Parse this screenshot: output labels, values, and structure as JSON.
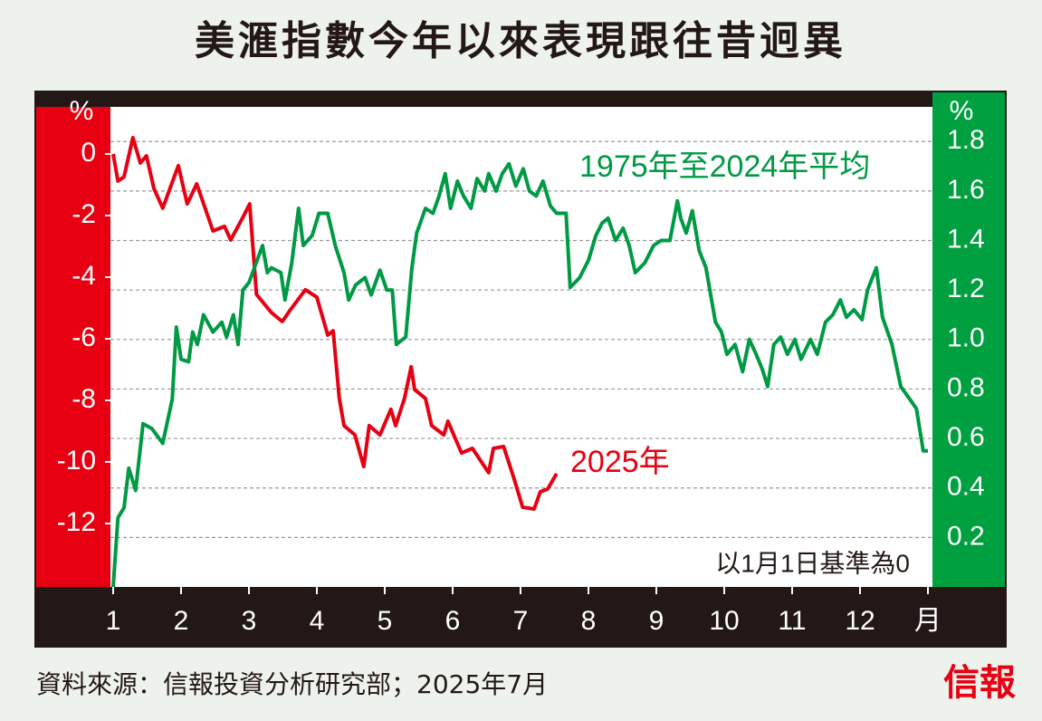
{
  "chart_data": {
    "type": "line",
    "title": "美滙指數今年以來表現跟往昔迥異",
    "y_label": "%",
    "y2_label": "%",
    "note": "以1月1日基準為0",
    "source": "資料來源：信報投資分析研究部；2025年7月",
    "logo": "信報",
    "xlim": [
      1,
      13
    ],
    "xticks": [
      1,
      2,
      3,
      4,
      5,
      6,
      7,
      8,
      9,
      10,
      11,
      12,
      {
        "value": 13,
        "label": "月"
      }
    ],
    "ylim": [
      -14.06,
      1.53
    ],
    "yticks": [
      0,
      -2,
      -4,
      -6,
      -8,
      -10,
      -12
    ],
    "y2lim": [
      0,
      1.94
    ],
    "y2ticks": [
      0.2,
      0.4,
      0.6,
      0.8,
      {
        "value": 1,
        "label": "1.0"
      },
      1.2,
      1.4,
      1.6,
      1.8
    ],
    "grid": true,
    "series": [
      {
        "name": "2025年",
        "color": "#e60012",
        "axis": "y",
        "x": [
          1,
          1.07,
          1.16,
          1.29,
          1.4,
          1.49,
          1.6,
          1.73,
          1.96,
          2.09,
          2.23,
          2.47,
          2.64,
          2.73,
          2.91,
          3.01,
          3.11,
          3.33,
          3.49,
          3.6,
          3.83,
          4.0,
          4.16,
          4.24,
          4.33,
          4.4,
          4.56,
          4.69,
          4.77,
          4.93,
          5.09,
          5.16,
          5.29,
          5.39,
          5.44,
          5.6,
          5.69,
          5.87,
          5.93,
          6.13,
          6.29,
          6.53,
          6.6,
          6.75,
          6.91,
          7.03,
          7.2,
          7.29,
          7.4,
          7.53
        ],
        "values": [
          0,
          -0.88,
          -0.74,
          0.53,
          -0.29,
          -0.06,
          -1.12,
          -1.76,
          -0.38,
          -1.62,
          -0.97,
          -2.5,
          -2.35,
          -2.79,
          -2.06,
          -1.62,
          -4.56,
          -5.15,
          -5.44,
          -5.09,
          -4.41,
          -4.65,
          -5.88,
          -5.74,
          -7.94,
          -8.82,
          -9.12,
          -10.15,
          -8.82,
          -9.12,
          -8.29,
          -8.82,
          -7.94,
          -6.91,
          -7.65,
          -7.94,
          -8.82,
          -9.12,
          -8.68,
          -9.71,
          -9.56,
          -10.35,
          -9.56,
          -9.5,
          -10.59,
          -11.47,
          -11.53,
          -10.97,
          -10.88,
          -10.38
        ]
      },
      {
        "name": "1975年至2024年平均",
        "color": "#009944",
        "axis": "y2",
        "x": [
          1.0,
          1.07,
          1.16,
          1.23,
          1.33,
          1.44,
          1.57,
          1.73,
          1.87,
          1.93,
          2.0,
          2.11,
          2.17,
          2.24,
          2.33,
          2.47,
          2.6,
          2.67,
          2.77,
          2.84,
          2.91,
          3.0,
          3.2,
          3.27,
          3.33,
          3.47,
          3.53,
          3.63,
          3.73,
          3.8,
          3.93,
          4.03,
          4.16,
          4.27,
          4.4,
          4.47,
          4.57,
          4.71,
          4.8,
          4.93,
          5.03,
          5.11,
          5.17,
          5.31,
          5.4,
          5.47,
          5.6,
          5.71,
          5.8,
          5.89,
          5.97,
          6.07,
          6.16,
          6.27,
          6.36,
          6.47,
          6.53,
          6.64,
          6.73,
          6.83,
          6.93,
          7.04,
          7.13,
          7.23,
          7.33,
          7.44,
          7.53,
          7.67,
          7.73,
          7.87,
          8.0,
          8.11,
          8.2,
          8.29,
          8.4,
          8.51,
          8.6,
          8.69,
          8.83,
          8.96,
          9.07,
          9.2,
          9.31,
          9.36,
          9.44,
          9.53,
          9.63,
          9.73,
          9.87,
          9.96,
          10.04,
          10.16,
          10.27,
          10.37,
          10.47,
          10.56,
          10.64,
          10.73,
          10.83,
          10.93,
          11.04,
          11.13,
          11.27,
          11.37,
          11.49,
          11.6,
          11.71,
          11.8,
          11.91,
          12.03,
          12.11,
          12.24,
          12.33,
          12.47,
          12.6,
          12.73,
          12.83,
          12.93,
          13.0
        ],
        "values": [
          0,
          0.28,
          0.32,
          0.48,
          0.39,
          0.66,
          0.64,
          0.58,
          0.76,
          1.05,
          0.92,
          0.91,
          1.03,
          0.98,
          1.1,
          1.03,
          1.07,
          1.01,
          1.1,
          0.98,
          1.2,
          1.23,
          1.38,
          1.27,
          1.29,
          1.27,
          1.16,
          1.31,
          1.53,
          1.38,
          1.42,
          1.51,
          1.51,
          1.38,
          1.27,
          1.16,
          1.22,
          1.25,
          1.18,
          1.28,
          1.2,
          1.2,
          0.98,
          1.01,
          1.29,
          1.43,
          1.53,
          1.51,
          1.58,
          1.67,
          1.53,
          1.64,
          1.58,
          1.53,
          1.65,
          1.6,
          1.67,
          1.6,
          1.67,
          1.71,
          1.62,
          1.69,
          1.6,
          1.58,
          1.64,
          1.54,
          1.51,
          1.51,
          1.21,
          1.25,
          1.32,
          1.42,
          1.47,
          1.49,
          1.4,
          1.45,
          1.38,
          1.27,
          1.31,
          1.38,
          1.4,
          1.4,
          1.56,
          1.49,
          1.43,
          1.52,
          1.36,
          1.29,
          1.07,
          1.03,
          0.94,
          0.98,
          0.87,
          1.0,
          0.94,
          0.88,
          0.81,
          0.98,
          1.01,
          0.94,
          1.0,
          0.92,
          1.0,
          0.94,
          1.07,
          1.1,
          1.16,
          1.09,
          1.12,
          1.08,
          1.2,
          1.29,
          1.09,
          0.98,
          0.81,
          0.76,
          0.72,
          0.55,
          0.55
        ]
      }
    ]
  }
}
